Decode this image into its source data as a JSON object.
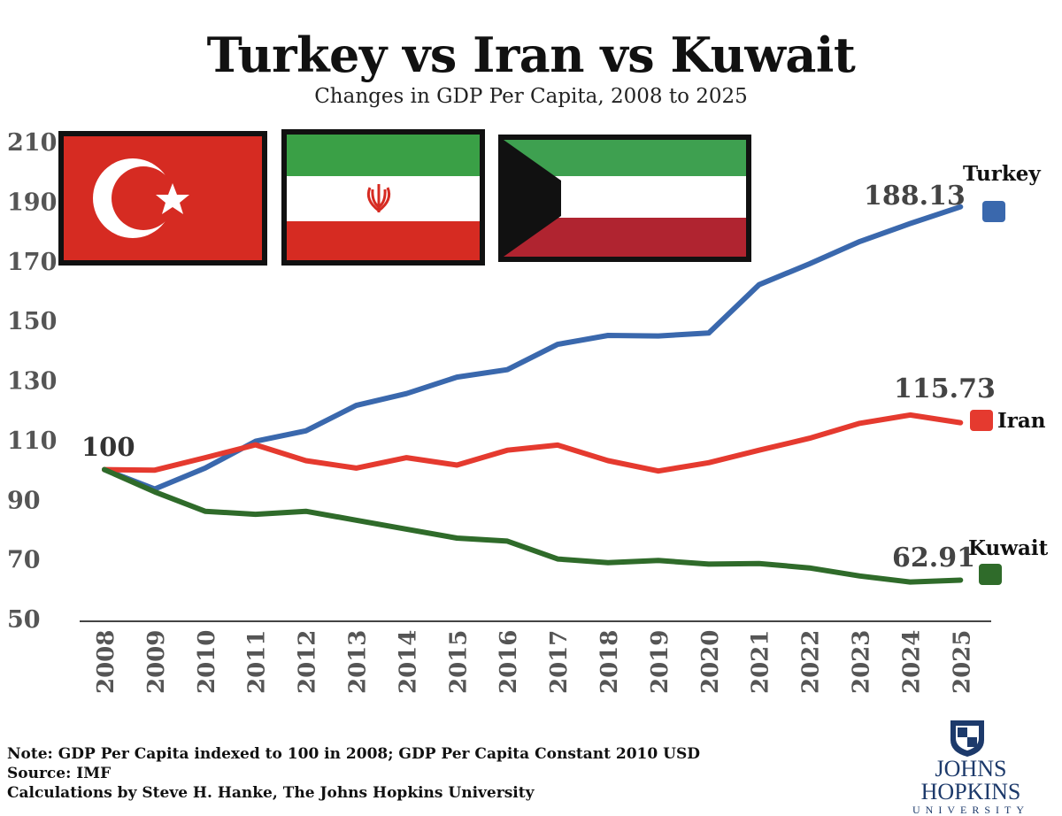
{
  "title": "Turkey vs Iran vs Kuwait",
  "subtitle": "Changes in GDP Per Capita, 2008 to 2025",
  "footer": {
    "note": "Note: GDP Per Capita indexed to 100 in 2008; GDP Per Capita Constant 2010 USD",
    "source": "Source: IMF",
    "credit": "Calculations by Steve H. Hanke, The Johns Hopkins University"
  },
  "logo": {
    "name": "JOHNS HOPKINS",
    "sub": "UNIVERSITY"
  },
  "flags": [
    "turkey-flag",
    "iran-flag",
    "kuwait-flag"
  ],
  "colors": {
    "turkey": "#3a68ad",
    "iran": "#e53a2f",
    "kuwait": "#2f6b2a",
    "axis_text": "#555555",
    "value_text": "#444444"
  },
  "chart_data": {
    "type": "line",
    "title": "Turkey vs Iran vs Kuwait",
    "subtitle": "Changes in GDP Per Capita, 2008 to 2025",
    "xlabel": "",
    "ylabel": "",
    "x": [
      "2008",
      "2009",
      "2010",
      "2011",
      "2012",
      "2013",
      "2014",
      "2015",
      "2016",
      "2017",
      "2018",
      "2019",
      "2020",
      "2021",
      "2022",
      "2023",
      "2024",
      "2025"
    ],
    "y_ticks": [
      "50",
      "70",
      "90",
      "110",
      "130",
      "150",
      "170",
      "190",
      "210"
    ],
    "ylim": [
      50,
      210
    ],
    "grid": false,
    "start_label": "100",
    "series": [
      {
        "name": "Turkey",
        "color": "#3a68ad",
        "end_label": "188.13",
        "values": [
          100,
          93.5,
          100.5,
          109.5,
          113,
          121.5,
          125.5,
          131,
          133.5,
          142,
          145,
          144.8,
          145.8,
          162,
          169,
          176.5,
          182.5,
          188.13
        ]
      },
      {
        "name": "Iran",
        "color": "#e53a2f",
        "end_label": "115.73",
        "values": [
          100,
          99.8,
          104,
          108.3,
          103,
          100.5,
          104,
          101.5,
          106.5,
          108.2,
          103,
          99.5,
          102.3,
          106.5,
          110.5,
          115.5,
          118.3,
          115.73
        ]
      },
      {
        "name": "Kuwait",
        "color": "#2f6b2a",
        "end_label": "62.91",
        "values": [
          100,
          92.5,
          86,
          85,
          86,
          83,
          80,
          77,
          76,
          70,
          68.8,
          69.5,
          68.3,
          68.5,
          67,
          64.3,
          62.3,
          62.91
        ]
      }
    ]
  }
}
